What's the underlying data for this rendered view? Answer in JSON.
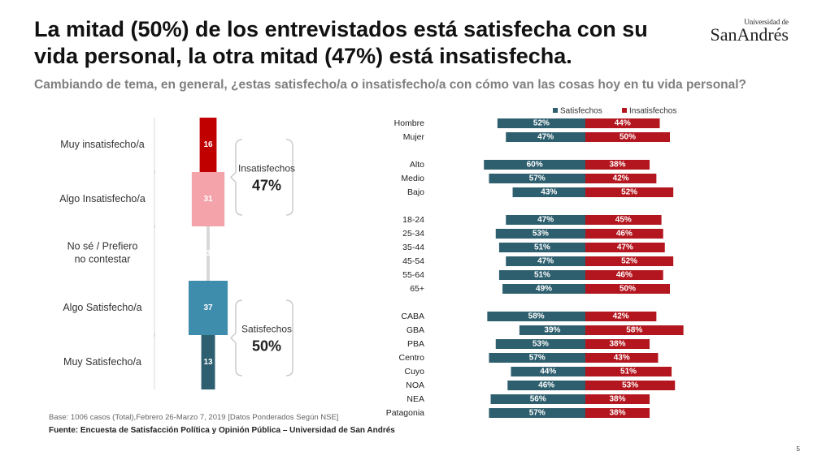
{
  "title": "La mitad (50%) de los entrevistados está satisfecha con su vida personal, la otra mitad (47%) está insatisfecha.",
  "subtitle": "Cambiando de tema, en general, ¿estas satisfecho/a o insatisfecho/a con cómo van las cosas hoy en tu vida personal?",
  "logo": {
    "line1": "Universidad de",
    "line2": "SanAndrés"
  },
  "base_note": "Base: 1006 casos (Total),Febrero 26-Marzo 7,  2019 [Datos Ponderados Según NSE]",
  "source": "Fuente: Encuesta de Satisfacción Política y Opinión Pública – Universidad de San Andrés",
  "page_number": "5",
  "chart_data": [
    {
      "type": "stacked-column",
      "categories": [
        "Muy insatisfecho/a",
        "Algo Insatisfecho/a",
        "No sé / Prefiero no contestar",
        "Algo Satisfecho/a",
        "Muy Satisfecho/a"
      ],
      "values": [
        16,
        31,
        3,
        37,
        13
      ],
      "colors": [
        "#c00000",
        "#f4a3aa",
        "#d9d9d9",
        "#3f8dad",
        "#2d5f70"
      ],
      "groups": [
        {
          "name": "Insatisfechos",
          "value": 47,
          "value_label": "47%"
        },
        {
          "name": "Satisfechos",
          "value": 50,
          "value_label": "50%"
        }
      ]
    },
    {
      "type": "diverging-bar",
      "categories": [
        "Hombre",
        "Mujer",
        "Alto",
        "Medio",
        "Bajo",
        "18-24",
        "25-34",
        "35-44",
        "45-54",
        "55-64",
        "65+",
        "CABA",
        "GBA",
        "PBA",
        "Centro",
        "Cuyo",
        "NOA",
        "NEA",
        "Patagonia"
      ],
      "series": [
        {
          "name": "Satisfechos",
          "color": "#2e5f6e",
          "values": [
            52,
            47,
            60,
            57,
            43,
            47,
            53,
            51,
            47,
            51,
            49,
            58,
            39,
            53,
            57,
            44,
            46,
            56,
            57
          ],
          "value_labels": [
            "52%",
            "47%",
            "60%",
            "57%",
            "43%",
            "47%",
            "53%",
            "51%",
            "47%",
            "51%",
            "49%",
            "58%",
            "39%",
            "53%",
            "57%",
            "44%",
            "46%",
            "56%",
            "57%"
          ]
        },
        {
          "name": "Insatisfechos",
          "color": "#b3161e",
          "values": [
            44,
            50,
            38,
            42,
            52,
            45,
            46,
            47,
            52,
            46,
            50,
            42,
            58,
            38,
            43,
            51,
            53,
            38,
            38
          ],
          "value_labels": [
            "44%",
            "50%",
            "38%",
            "42%",
            "52%",
            "45%",
            "46%",
            "47%",
            "52%",
            "46%",
            "50%",
            "42%",
            "58%",
            "38%",
            "43%",
            "51%",
            "53%",
            "38%",
            "38%"
          ]
        }
      ]
    }
  ]
}
